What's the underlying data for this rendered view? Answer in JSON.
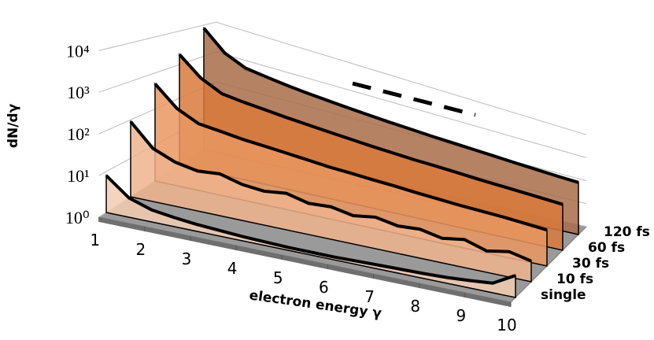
{
  "chart_data": {
    "type": "waterfall3d",
    "ylabel": "dN/dγ",
    "xlabel": "electron energy γ",
    "log_y": true,
    "grid": true,
    "ylim": [
      1,
      10000
    ],
    "yticks": [
      {
        "value": 1,
        "label": "10⁰"
      },
      {
        "value": 10,
        "label": "10¹"
      },
      {
        "value": 100,
        "label": "10²"
      },
      {
        "value": 1000,
        "label": "10³"
      },
      {
        "value": 10000,
        "label": "10⁴"
      }
    ],
    "xlim": [
      1,
      10
    ],
    "xticks": [
      1,
      2,
      3,
      4,
      5,
      6,
      7,
      8,
      9,
      10
    ],
    "x": [
      1,
      1.5,
      2,
      2.5,
      3,
      3.5,
      4,
      4.5,
      5,
      5.5,
      6,
      6.5,
      7,
      7.5,
      8,
      8.5,
      9,
      9.5,
      10
    ],
    "series": [
      {
        "name": "single",
        "color": "#f3cdb3",
        "values": [
          8,
          3,
          2,
          1.7,
          1.5,
          1.4,
          1.3,
          1.25,
          1.2,
          1.2,
          1.2,
          1.25,
          1.3,
          1.35,
          1.4,
          1.5,
          1.7,
          2,
          5
        ]
      },
      {
        "name": "10 fs",
        "color": "#efb38d",
        "values": [
          90,
          25,
          15,
          12,
          14,
          10,
          9,
          11,
          8,
          9,
          7,
          9,
          7,
          8,
          6,
          8,
          5,
          7,
          5
        ]
      },
      {
        "name": "30 fs",
        "color": "#e99660",
        "values": [
          500,
          150,
          80,
          70,
          60,
          55,
          50,
          45,
          40,
          38,
          35,
          33,
          30,
          28,
          26,
          25,
          24,
          22,
          20
        ]
      },
      {
        "name": "60 fs",
        "color": "#d97a3c",
        "values": [
          2000,
          600,
          300,
          250,
          220,
          190,
          170,
          150,
          135,
          120,
          110,
          100,
          95,
          88,
          80,
          75,
          70,
          65,
          60
        ]
      },
      {
        "name": "120 fs",
        "color": "#a86c48",
        "values": [
          8000,
          2000,
          1000,
          800,
          650,
          550,
          480,
          420,
          370,
          330,
          300,
          270,
          250,
          230,
          210,
          190,
          175,
          160,
          150
        ]
      }
    ]
  }
}
